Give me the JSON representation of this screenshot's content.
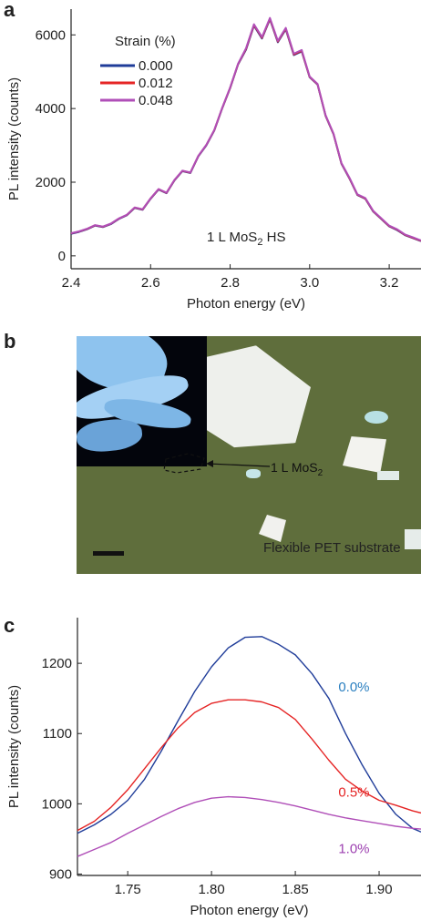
{
  "panel_labels": {
    "a": "a",
    "b": "b",
    "c": "c"
  },
  "panel_b": {
    "mos2_label": "1 L MoS",
    "mos2_sub": "2",
    "substrate_label": "Flexible PET substrate"
  },
  "chart_data": [
    {
      "panel": "a",
      "type": "line",
      "xlabel": "Photon energy (eV)",
      "ylabel": "PL intensity (counts)",
      "xlim": [
        2.4,
        3.28
      ],
      "ylim": [
        -350,
        6700
      ],
      "xticks": [
        2.4,
        2.6,
        2.8,
        3.0,
        3.2
      ],
      "xtick_labels": [
        "2.4",
        "2.6",
        "2.8",
        "3.0",
        "3.2"
      ],
      "yticks": [
        0,
        2000,
        4000,
        6000
      ],
      "ytick_labels": [
        "0",
        "2000",
        "4000",
        "6000"
      ],
      "legend_title": "Strain (%)",
      "legend_placement": "top-left",
      "annotation": {
        "text": "1 L MoS",
        "sub": "2",
        "after": " HS"
      },
      "x": [
        2.4,
        2.42,
        2.44,
        2.46,
        2.48,
        2.5,
        2.52,
        2.54,
        2.56,
        2.58,
        2.6,
        2.62,
        2.64,
        2.66,
        2.68,
        2.7,
        2.72,
        2.74,
        2.76,
        2.78,
        2.8,
        2.82,
        2.84,
        2.86,
        2.88,
        2.9,
        2.92,
        2.94,
        2.96,
        2.98,
        3.0,
        3.02,
        3.04,
        3.06,
        3.08,
        3.1,
        3.12,
        3.14,
        3.16,
        3.18,
        3.2,
        3.22,
        3.24,
        3.26,
        3.28
      ],
      "series": [
        {
          "name": "0.000",
          "color": "#1f3c99",
          "values": [
            600,
            650,
            720,
            820,
            780,
            860,
            1000,
            1100,
            1300,
            1250,
            1550,
            1800,
            1700,
            2050,
            2300,
            2250,
            2700,
            3000,
            3400,
            4000,
            4550,
            5200,
            5600,
            6250,
            5900,
            6420,
            5800,
            6150,
            5450,
            5550,
            4850,
            4650,
            3800,
            3300,
            2500,
            2100,
            1650,
            1550,
            1200,
            1000,
            800,
            700,
            560,
            480,
            400
          ]
        },
        {
          "name": "0.012",
          "color": "#e52424",
          "values": [
            610,
            660,
            730,
            830,
            790,
            870,
            1010,
            1110,
            1310,
            1260,
            1560,
            1810,
            1710,
            2060,
            2310,
            2260,
            2710,
            3010,
            3410,
            4010,
            4560,
            5210,
            5620,
            6270,
            5920,
            6440,
            5820,
            6170,
            5470,
            5570,
            4860,
            4660,
            3810,
            3310,
            2510,
            2110,
            1660,
            1560,
            1210,
            1010,
            810,
            710,
            570,
            490,
            410
          ]
        },
        {
          "name": "0.048",
          "color": "#b04fb8",
          "values": [
            615,
            665,
            735,
            835,
            795,
            875,
            1015,
            1115,
            1315,
            1265,
            1565,
            1815,
            1715,
            2065,
            2315,
            2265,
            2715,
            3015,
            3415,
            4015,
            4570,
            5220,
            5640,
            6290,
            5940,
            6460,
            5840,
            6190,
            5490,
            5590,
            4870,
            4670,
            3820,
            3320,
            2520,
            2120,
            1670,
            1570,
            1220,
            1020,
            820,
            720,
            580,
            500,
            420
          ]
        }
      ]
    },
    {
      "panel": "c",
      "type": "line",
      "xlabel": "Photon energy (eV)",
      "ylabel": "PL intensity (counts)",
      "xlim": [
        1.72,
        1.925
      ],
      "ylim": [
        898,
        1265
      ],
      "xticks": [
        1.75,
        1.8,
        1.85,
        1.9
      ],
      "xtick_labels": [
        "1.75",
        "1.80",
        "1.85",
        "1.90"
      ],
      "yticks": [
        900,
        1000,
        1100,
        1200
      ],
      "ytick_labels": [
        "900",
        "1000",
        "1100",
        "1200"
      ],
      "x": [
        1.72,
        1.73,
        1.74,
        1.75,
        1.76,
        1.77,
        1.78,
        1.79,
        1.8,
        1.81,
        1.82,
        1.83,
        1.84,
        1.85,
        1.86,
        1.87,
        1.88,
        1.89,
        1.9,
        1.91,
        1.92,
        1.925
      ],
      "series": [
        {
          "name": "0.0%",
          "color": "#1f3c99",
          "label_color": "#2a7fc0",
          "label_x": 1.885,
          "label_y": 1160,
          "values": [
            958,
            970,
            985,
            1005,
            1035,
            1075,
            1118,
            1160,
            1195,
            1222,
            1237,
            1238,
            1227,
            1212,
            1185,
            1150,
            1100,
            1055,
            1015,
            985,
            965,
            960
          ]
        },
        {
          "name": "0.5%",
          "color": "#e52424",
          "label_color": "#e52424",
          "label_x": 1.885,
          "label_y": 1010,
          "values": [
            962,
            975,
            995,
            1020,
            1050,
            1080,
            1108,
            1130,
            1143,
            1148,
            1148,
            1145,
            1137,
            1120,
            1092,
            1062,
            1035,
            1018,
            1005,
            998,
            990,
            987
          ]
        },
        {
          "name": "1.0%",
          "color": "#b04fb8",
          "label_color": "#9c3fb0",
          "label_x": 1.885,
          "label_y": 930,
          "values": [
            925,
            935,
            945,
            958,
            970,
            982,
            993,
            1002,
            1008,
            1010,
            1009,
            1006,
            1002,
            997,
            991,
            985,
            980,
            976,
            972,
            968,
            965,
            964
          ]
        }
      ]
    }
  ]
}
